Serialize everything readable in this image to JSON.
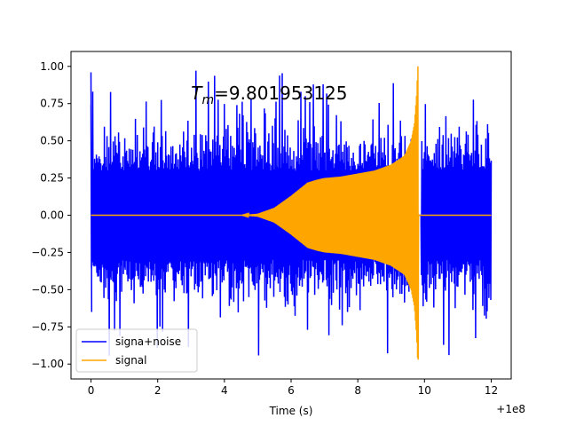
{
  "chart_data": {
    "type": "line",
    "title": "",
    "xlabel": "Time (s)",
    "ylabel": "",
    "x_offset_label": "+1e8",
    "xlim": [
      -0.6,
      12.6
    ],
    "ylim": [
      -1.1,
      1.1
    ],
    "xticks": [
      0,
      2,
      4,
      6,
      8,
      10,
      12
    ],
    "xtick_labels": [
      "0",
      "2",
      "4",
      "6",
      "8",
      "10",
      "12"
    ],
    "yticks": [
      -1.0,
      -0.75,
      -0.5,
      -0.25,
      0.0,
      0.25,
      0.5,
      0.75,
      1.0
    ],
    "ytick_labels": [
      "−1.00",
      "−0.75",
      "−0.50",
      "−0.25",
      "0.00",
      "0.25",
      "0.50",
      "0.75",
      "1.00"
    ],
    "grid": false,
    "legend_position": "lower-left",
    "annotation": {
      "symbol": "T",
      "subscript": "m",
      "text": "=9.801953125",
      "x": 3.0,
      "y": 0.82
    },
    "series": [
      {
        "name": "signa+noise",
        "color": "#0000ff",
        "kind": "noisy-burst",
        "x_range": [
          0.0,
          12.0
        ],
        "gap_range": [
          9.8,
          9.9
        ],
        "peak_amplitude": 1.0,
        "typical_amplitude": 0.55,
        "min_value": -0.97
      },
      {
        "name": "signal",
        "color": "#ffa500",
        "kind": "chirp-envelope",
        "x_range": [
          0.0,
          12.0
        ],
        "merger_time": 9.801953125,
        "envelope": [
          {
            "x": 0.0,
            "amp": 0.0
          },
          {
            "x": 4.5,
            "amp": 0.0
          },
          {
            "x": 5.0,
            "amp": 0.01
          },
          {
            "x": 5.5,
            "amp": 0.05
          },
          {
            "x": 6.0,
            "amp": 0.13
          },
          {
            "x": 6.5,
            "amp": 0.22
          },
          {
            "x": 6.8,
            "amp": 0.24
          },
          {
            "x": 7.0,
            "amp": 0.25
          },
          {
            "x": 7.5,
            "amp": 0.26
          },
          {
            "x": 8.0,
            "amp": 0.28
          },
          {
            "x": 8.5,
            "amp": 0.3
          },
          {
            "x": 9.0,
            "amp": 0.34
          },
          {
            "x": 9.4,
            "amp": 0.4
          },
          {
            "x": 9.6,
            "amp": 0.5
          },
          {
            "x": 9.7,
            "amp": 0.62
          },
          {
            "x": 9.76,
            "amp": 0.8
          },
          {
            "x": 9.8,
            "amp": 1.0
          },
          {
            "x": 9.82,
            "amp": 0.0
          },
          {
            "x": 12.0,
            "amp": 0.0
          }
        ]
      }
    ]
  }
}
